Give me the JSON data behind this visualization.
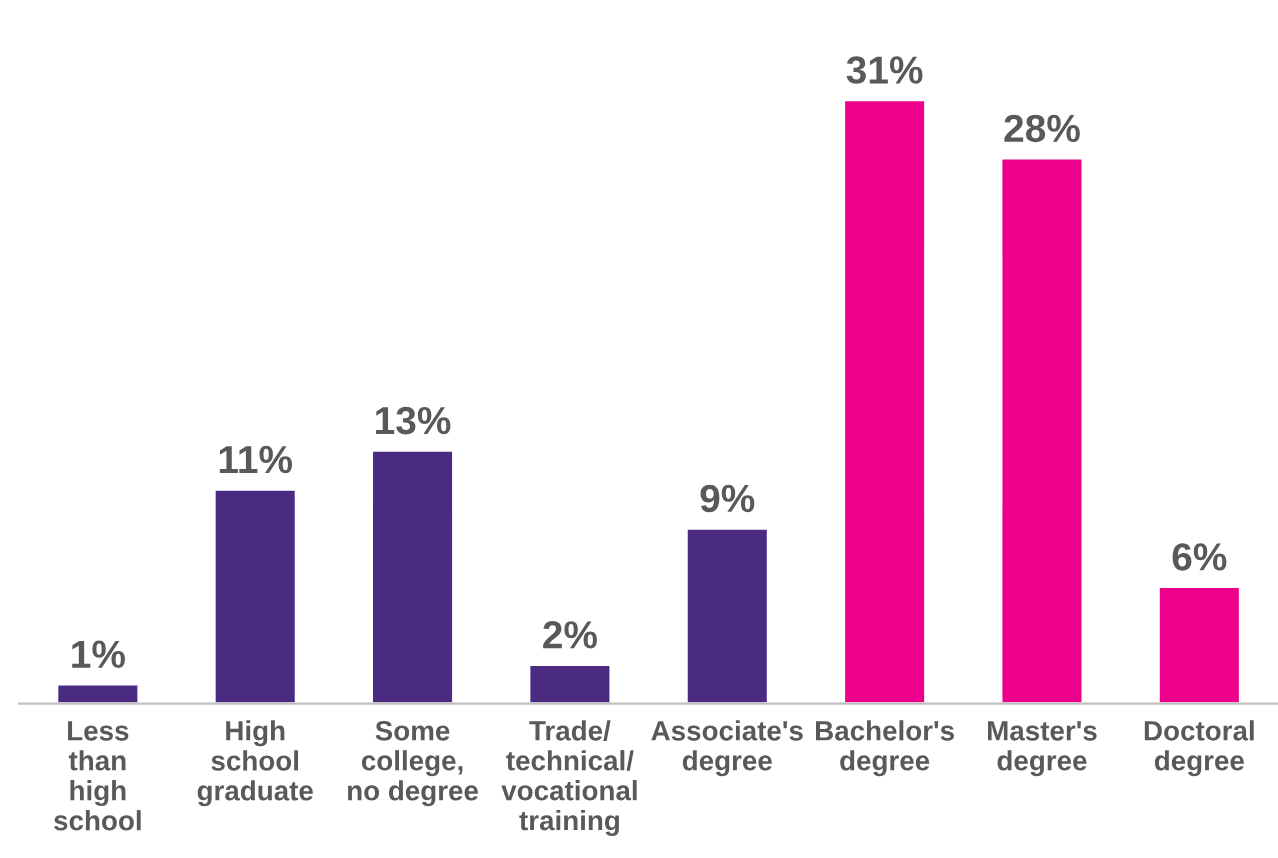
{
  "chart_data": {
    "type": "bar",
    "categories": [
      "Less\nthan\nhigh\nschool",
      "High\nschool\ngraduate",
      "Some\ncollege,\nno degree",
      "Trade/\ntechnical/\nvocational\ntraining",
      "Associate's\ndegree",
      "Bachelor's\ndegree",
      "Master's\ndegree",
      "Doctoral\ndegree"
    ],
    "values": [
      1,
      11,
      13,
      2,
      9,
      31,
      28,
      6
    ],
    "colors": [
      "#4b2a82",
      "#4b2a82",
      "#4b2a82",
      "#4b2a82",
      "#4b2a82",
      "#ec008c",
      "#ec008c",
      "#ec008c"
    ],
    "value_labels": [
      "1%",
      "11%",
      "13%",
      "2%",
      "9%",
      "31%",
      "28%",
      "6%"
    ],
    "grid": false,
    "legend": false
  }
}
